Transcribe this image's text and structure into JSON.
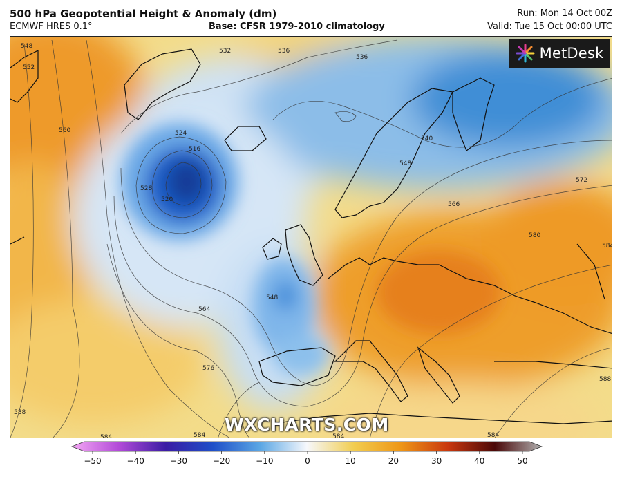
{
  "header": {
    "title": "500 hPa Geopotential Height & Anomaly (dm)",
    "model": "ECMWF HRES 0.1°",
    "base": "Base: CFSR 1979-2010 climatology",
    "run": "Run: Mon 14 Oct 00Z",
    "valid": "Valid: Tue 15 Oct 00:00 UTC"
  },
  "logo": {
    "text": "MetDesk",
    "icon": "metdesk-starburst-logo"
  },
  "watermark": {
    "text": "WXCHARTS.COM"
  },
  "contour_labels": [
    "548",
    "552",
    "560",
    "524",
    "516",
    "528",
    "520",
    "532",
    "536",
    "536",
    "540",
    "548",
    "566",
    "572",
    "580",
    "584",
    "548",
    "564",
    "576",
    "588",
    "584",
    "584",
    "584",
    "584",
    "588"
  ],
  "colorbar": {
    "ticks": [
      "−50",
      "−40",
      "−30",
      "−20",
      "−10",
      "0",
      "10",
      "20",
      "30",
      "40",
      "50"
    ],
    "colors": {
      "m50": "#f4a8f4",
      "m40": "#b24ad8",
      "m30": "#3a1ca4",
      "m20": "#1f4fc8",
      "m10": "#5aa6e4",
      "zero": "#f6f8fc",
      "p10": "#f2cd50",
      "p20": "#ee9616",
      "p30": "#c9380e",
      "p40": "#4a0808",
      "p50": "#b0b0b0"
    }
  }
}
